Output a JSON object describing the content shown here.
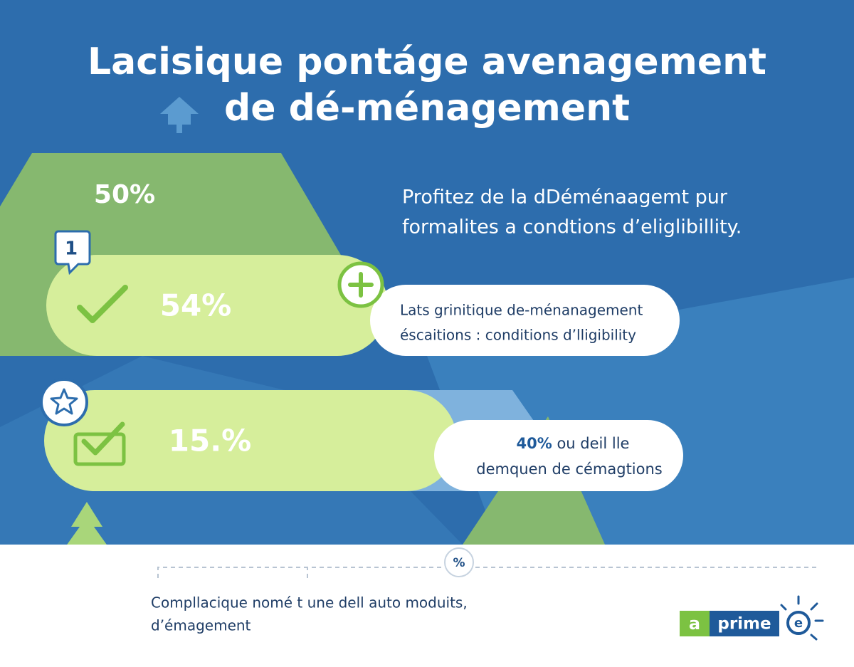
{
  "header": {
    "title_lines": [
      "Lacisique pontáge avenagement",
      "de dé-ménagement"
    ]
  },
  "hero": {
    "stat": "50%",
    "badge": "1",
    "text_lines": [
      "Profitez de la dDéménaagemt pur",
      "formalites a condtions d’eliglibillity."
    ]
  },
  "items": [
    {
      "stat": "54%",
      "text_lines": [
        "Lats grinitique de-ménanagement",
        "éscaitions : conditions d’lligibility"
      ]
    },
    {
      "stat": "15.%",
      "highlight": "40%",
      "text_lines": [
        " ou deil lle",
        "demquen de cémagtions"
      ]
    }
  ],
  "footer": {
    "badge": "%",
    "text_lines": [
      "Compllacique nomé t une dell auto moduits,",
      "d’émagement"
    ]
  },
  "logo": {
    "parts": [
      "a",
      "prime",
      "e"
    ]
  }
}
